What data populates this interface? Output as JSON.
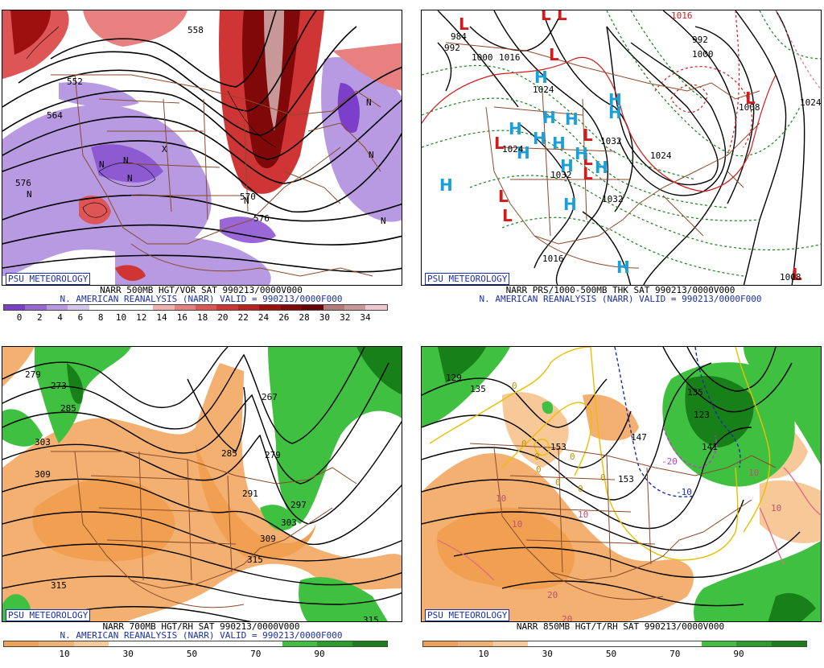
{
  "panels": [
    {
      "badge": "PSU METEOROLOGY",
      "title_line1": "NARR 500MB HGT/VOR SAT 990213/0000V000",
      "title_line2": "N. AMERICAN REANALYSIS (NARR) VALID = 990213/0000F000",
      "colorbar_ticks": [
        "0",
        "2",
        "4",
        "6",
        "8",
        "10",
        "12",
        "14",
        "16",
        "18",
        "20",
        "22",
        "24",
        "26",
        "28",
        "30",
        "32",
        "34"
      ],
      "contour_labels": [
        "576",
        "564",
        "552",
        "576",
        "570",
        "558"
      ],
      "symbol_labels": [
        "N",
        "N",
        "N",
        "N",
        "N",
        "N",
        "N",
        "N",
        "X"
      ]
    },
    {
      "badge": "PSU METEOROLOGY",
      "title_line1": "NARR PRS/1000-500MB THK SAT 990213/0000V000",
      "title_line2": "N. AMERICAN REANALYSIS (NARR) VALID = 990213/0000F000",
      "contour_labels": [
        "984",
        "992",
        "1000",
        "1016",
        "1024",
        "1024",
        "1032",
        "1032",
        "1024",
        "1032",
        "992",
        "1000",
        "1008",
        "1024",
        "1016",
        "1008",
        "1016"
      ],
      "high_low_symbols": [
        "L",
        "L",
        "L",
        "L",
        "L",
        "L",
        "L",
        "L",
        "L",
        "L",
        "L",
        "L",
        "H",
        "H",
        "H",
        "H",
        "H",
        "H",
        "H",
        "H",
        "H",
        "H",
        "H",
        "H",
        "H",
        "H",
        "H"
      ]
    },
    {
      "badge": "PSU METEOROLOGY",
      "title_line1": "NARR 700MB HGT/RH SAT 990213/0000V000",
      "title_line2": "N. AMERICAN REANALYSIS (NARR) VALID = 990213/0000F000",
      "colorbar_ticks": [
        "10",
        "30",
        "50",
        "70",
        "90"
      ],
      "contour_labels": [
        "279",
        "273",
        "285",
        "303",
        "309",
        "267",
        "285",
        "279",
        "291",
        "297",
        "303",
        "309",
        "315",
        "315",
        "315"
      ]
    },
    {
      "badge": "PSU METEOROLOGY",
      "title_line1": "NARR 850MB HGT/T/RH SAT 990213/0000V000",
      "title_line2": "",
      "colorbar_ticks": [
        "10",
        "30",
        "50",
        "70",
        "90"
      ],
      "contour_labels": [
        "129",
        "135",
        "153",
        "153",
        "147",
        "123",
        "135",
        "141"
      ],
      "temp_labels": [
        "0",
        "0",
        "0",
        "0",
        "0",
        "0",
        "0",
        "0",
        "10",
        "10",
        "10",
        "10",
        "10",
        "20",
        "20",
        "-10",
        "-20"
      ]
    }
  ],
  "colors": {
    "title_blue": "#1a2fa8",
    "vorticity_scale": [
      "#7b3fc9",
      "#9a67d6",
      "#b89ae3",
      "#d5c6ee",
      "#ffffff",
      "#ffffff",
      "#ffffff",
      "#f2b0b0",
      "#e88080",
      "#dd5555",
      "#d03535",
      "#bb2020",
      "#9e1010",
      "#800808",
      "#6a0404",
      "#b37a7a",
      "#c89898",
      "#f0c8d0"
    ],
    "rh_scale": [
      "#f0a050",
      "#f4b070",
      "#f7c898",
      "#ffffff",
      "#ffffff",
      "#ffffff",
      "#ffffff",
      "#ffffff",
      "#40c040",
      "#28a028",
      "#188018"
    ],
    "high_symbol": "#1aa0d8",
    "low_symbol": "#d41b1b",
    "borders": "#8a4a2a"
  }
}
